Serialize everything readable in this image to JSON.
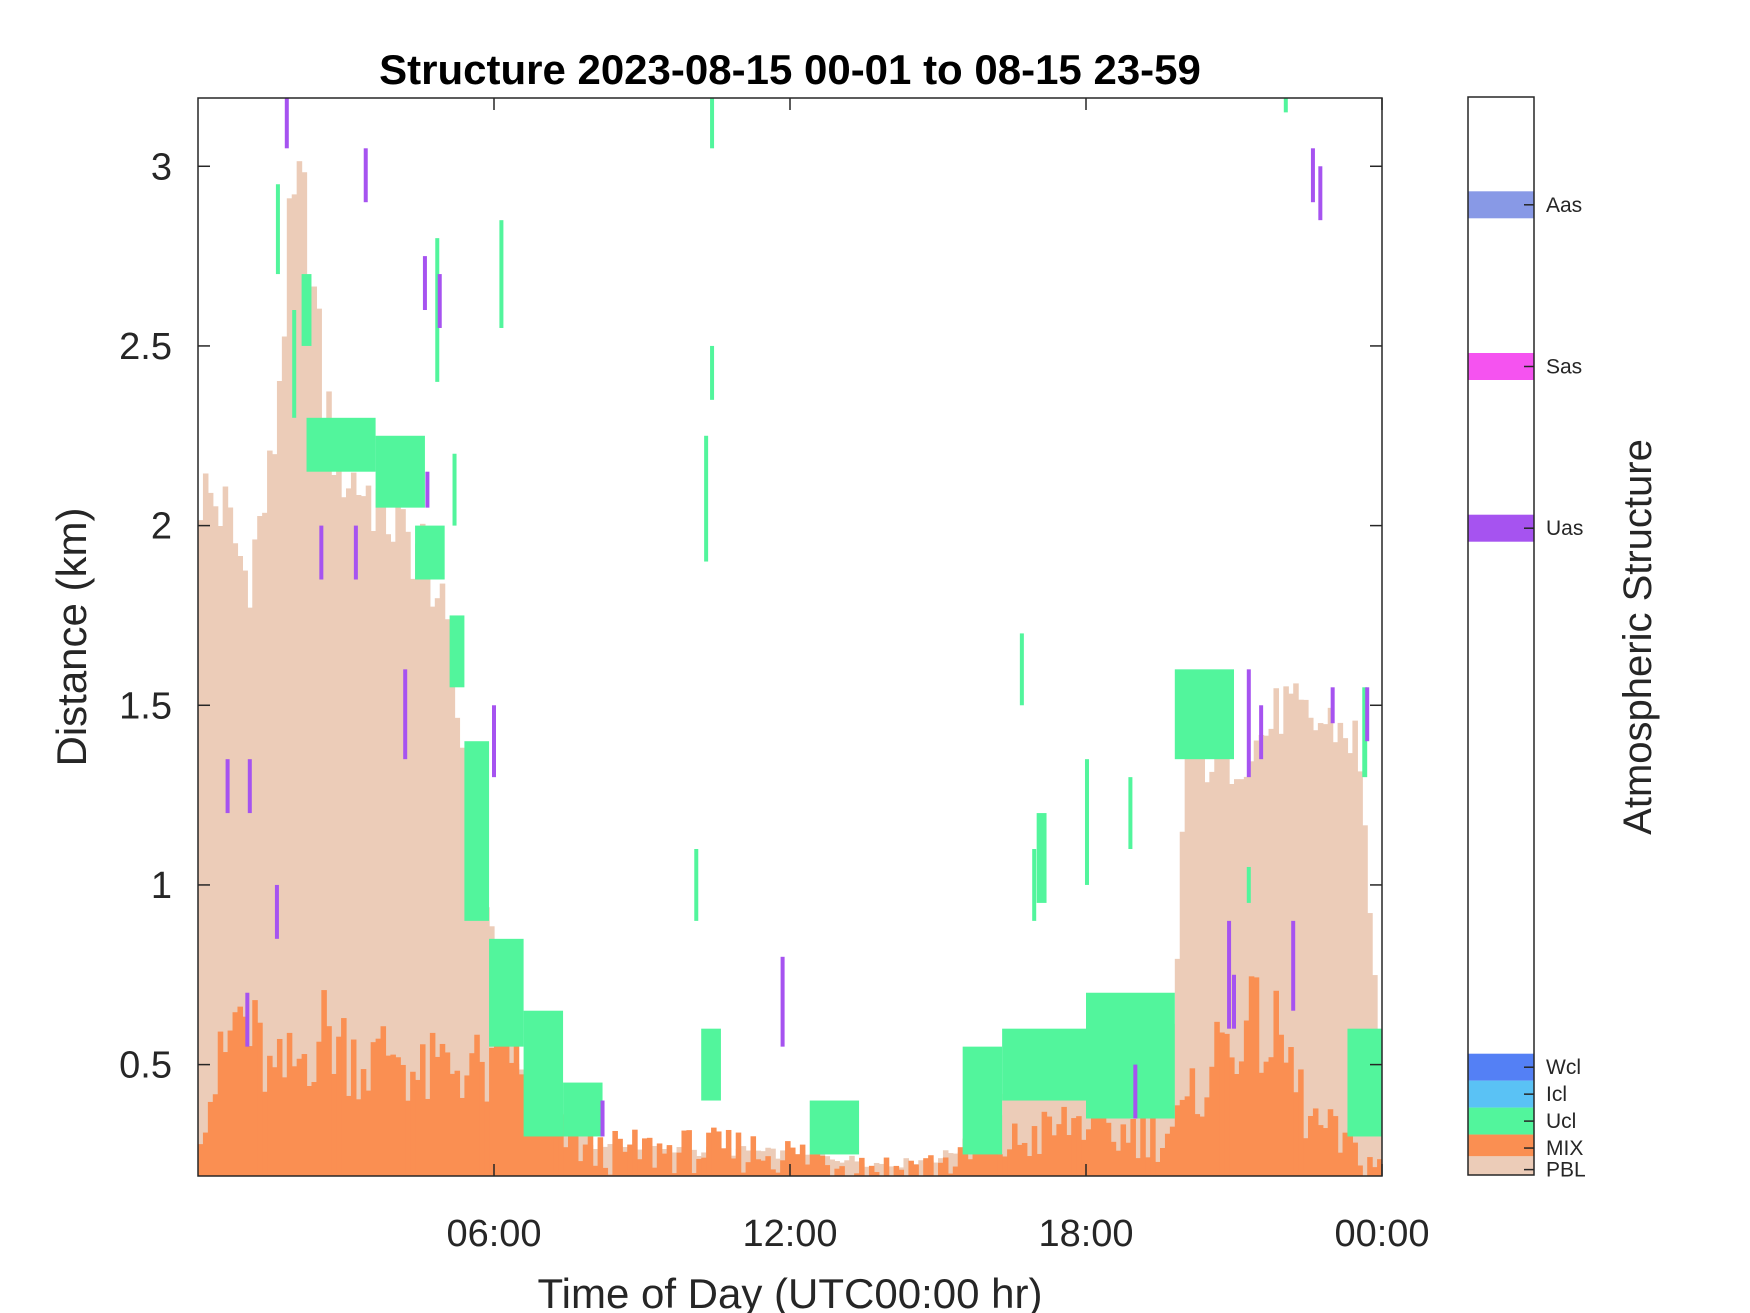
{
  "chart_data": {
    "type": "heatmap",
    "title": "Structure 2023-08-15 00-01 to 08-15 23-59",
    "xlabel": "Time of Day (UTC00:00 hr)",
    "ylabel": "Distance (km)",
    "xlim": [
      0,
      24
    ],
    "ylim": [
      0.19,
      3.19
    ],
    "xticks": [
      6,
      12,
      18,
      24
    ],
    "xtick_labels": [
      "06:00",
      "12:00",
      "18:00",
      "00:00"
    ],
    "yticks": [
      0.5,
      1,
      1.5,
      2,
      2.5,
      3
    ],
    "ytick_labels": [
      "0.5",
      "1",
      "1.5",
      "2",
      "2.5",
      "3"
    ],
    "grid": false,
    "colorbar": {
      "label": "Atmospheric Structure",
      "categories": [
        {
          "name": "Aas",
          "color": "#8899e6",
          "value": 0.1
        },
        {
          "name": "Sas",
          "color": "#f553f0",
          "value": 0.25
        },
        {
          "name": "Uas",
          "color": "#a653f0",
          "value": 0.4
        },
        {
          "name": "Wcl",
          "color": "#5480f5",
          "value": 0.9
        },
        {
          "name": "Icl",
          "color": "#5ac2f5",
          "value": 0.925
        },
        {
          "name": "Ucl",
          "color": "#52f59c",
          "value": 0.95
        },
        {
          "name": "MIX",
          "color": "#fa8f52",
          "value": 0.975
        },
        {
          "name": "PBL",
          "color": "#ecccb8",
          "value": 0.995
        }
      ]
    },
    "pbl_top_km": [
      [
        0.0,
        2.1
      ],
      [
        0.5,
        2.05
      ],
      [
        1.0,
        1.85
      ],
      [
        1.5,
        2.15
      ],
      [
        1.8,
        2.7
      ],
      [
        2.0,
        2.9
      ],
      [
        2.2,
        2.85
      ],
      [
        2.5,
        2.4
      ],
      [
        2.8,
        2.2
      ],
      [
        3.0,
        2.15
      ],
      [
        3.4,
        2.1
      ],
      [
        3.8,
        2.05
      ],
      [
        4.2,
        1.95
      ],
      [
        4.5,
        1.95
      ],
      [
        4.8,
        1.85
      ],
      [
        5.0,
        1.7
      ],
      [
        5.3,
        1.45
      ],
      [
        5.6,
        1.05
      ],
      [
        6.0,
        0.85
      ],
      [
        6.3,
        0.6
      ],
      [
        6.6,
        0.45
      ],
      [
        7.0,
        0.35
      ],
      [
        7.5,
        0.32
      ],
      [
        8.0,
        0.28
      ],
      [
        9.0,
        0.26
      ],
      [
        10.0,
        0.26
      ],
      [
        11.0,
        0.26
      ],
      [
        12.0,
        0.25
      ],
      [
        13.0,
        0.24
      ],
      [
        14.0,
        0.22
      ],
      [
        15.0,
        0.24
      ],
      [
        16.0,
        0.3
      ],
      [
        16.5,
        0.45
      ],
      [
        17.0,
        0.5
      ],
      [
        17.5,
        0.45
      ],
      [
        18.0,
        0.5
      ],
      [
        18.5,
        0.45
      ],
      [
        19.0,
        0.5
      ],
      [
        19.5,
        0.55
      ],
      [
        19.8,
        0.6
      ],
      [
        20.0,
        1.35
      ],
      [
        20.5,
        1.35
      ],
      [
        21.0,
        1.35
      ],
      [
        21.5,
        1.4
      ],
      [
        22.0,
        1.5
      ],
      [
        22.5,
        1.45
      ],
      [
        23.0,
        1.45
      ],
      [
        23.5,
        1.4
      ],
      [
        24.0,
        0.5
      ]
    ],
    "mix_top_km": [
      [
        0.0,
        0.35
      ],
      [
        0.5,
        0.5
      ],
      [
        0.8,
        0.65
      ],
      [
        1.2,
        0.55
      ],
      [
        1.5,
        0.45
      ],
      [
        2.0,
        0.5
      ],
      [
        2.5,
        0.6
      ],
      [
        3.0,
        0.55
      ],
      [
        3.5,
        0.5
      ],
      [
        4.0,
        0.55
      ],
      [
        4.5,
        0.45
      ],
      [
        5.0,
        0.5
      ],
      [
        5.5,
        0.5
      ],
      [
        6.0,
        0.45
      ],
      [
        6.3,
        0.6
      ],
      [
        6.6,
        0.4
      ],
      [
        7.0,
        0.3
      ],
      [
        7.5,
        0.3
      ],
      [
        8.0,
        0.25
      ],
      [
        9.0,
        0.26
      ],
      [
        10.0,
        0.26
      ],
      [
        11.0,
        0.26
      ],
      [
        12.0,
        0.25
      ],
      [
        13.0,
        0.23
      ],
      [
        14.0,
        0.21
      ],
      [
        15.0,
        0.22
      ],
      [
        16.0,
        0.26
      ],
      [
        17.0,
        0.3
      ],
      [
        18.0,
        0.35
      ],
      [
        18.5,
        0.3
      ],
      [
        19.0,
        0.32
      ],
      [
        19.5,
        0.3
      ],
      [
        20.0,
        0.35
      ],
      [
        20.5,
        0.5
      ],
      [
        21.0,
        0.6
      ],
      [
        21.5,
        0.6
      ],
      [
        22.0,
        0.55
      ],
      [
        22.5,
        0.35
      ],
      [
        23.0,
        0.3
      ],
      [
        23.5,
        0.25
      ],
      [
        24.0,
        0.22
      ]
    ],
    "ucl_blocks": [
      [
        2.1,
        2.3,
        2.5,
        2.7
      ],
      [
        2.2,
        3.6,
        2.15,
        2.3
      ],
      [
        3.6,
        4.6,
        2.05,
        2.25
      ],
      [
        4.4,
        5.0,
        1.85,
        2.0
      ],
      [
        5.1,
        5.4,
        1.55,
        1.75
      ],
      [
        5.4,
        5.9,
        0.9,
        1.4
      ],
      [
        5.9,
        6.6,
        0.55,
        0.85
      ],
      [
        6.6,
        7.4,
        0.3,
        0.65
      ],
      [
        7.4,
        8.2,
        0.3,
        0.45
      ],
      [
        10.2,
        10.6,
        0.4,
        0.6
      ],
      [
        12.4,
        13.4,
        0.25,
        0.4
      ],
      [
        15.5,
        16.3,
        0.25,
        0.55
      ],
      [
        16.3,
        18.0,
        0.4,
        0.6
      ],
      [
        17.0,
        17.2,
        0.95,
        1.2
      ],
      [
        18.0,
        19.8,
        0.35,
        0.7
      ],
      [
        19.8,
        21.0,
        1.35,
        1.6
      ],
      [
        23.3,
        24.0,
        0.3,
        0.6
      ],
      [
        23.6,
        23.7,
        1.3,
        1.55
      ]
    ],
    "ucl_streaks": [
      [
        1.62,
        2.7,
        2.95
      ],
      [
        1.95,
        2.3,
        2.6
      ],
      [
        6.15,
        2.55,
        2.85
      ],
      [
        10.3,
        1.9,
        2.25
      ],
      [
        10.42,
        2.35,
        2.5
      ],
      [
        10.42,
        3.05,
        3.2
      ],
      [
        10.1,
        0.9,
        1.1
      ],
      [
        16.7,
        1.5,
        1.7
      ],
      [
        16.95,
        0.9,
        1.1
      ],
      [
        18.02,
        1.0,
        1.35
      ],
      [
        18.9,
        1.1,
        1.3
      ],
      [
        21.3,
        0.95,
        1.05
      ],
      [
        22.05,
        3.15,
        3.2
      ],
      [
        4.85,
        2.4,
        2.8
      ],
      [
        5.2,
        2.0,
        2.2
      ]
    ],
    "uas_streaks": [
      [
        1.8,
        3.05,
        3.19
      ],
      [
        3.4,
        2.9,
        3.05
      ],
      [
        4.6,
        2.6,
        2.75
      ],
      [
        4.9,
        2.55,
        2.7
      ],
      [
        4.65,
        2.05,
        2.15
      ],
      [
        2.5,
        1.85,
        2.0
      ],
      [
        3.2,
        1.85,
        2.0
      ],
      [
        0.6,
        1.2,
        1.35
      ],
      [
        1.05,
        1.2,
        1.35
      ],
      [
        1.6,
        0.85,
        1.0
      ],
      [
        4.2,
        1.35,
        1.6
      ],
      [
        6.0,
        1.3,
        1.5
      ],
      [
        11.85,
        0.55,
        0.8
      ],
      [
        21.3,
        1.3,
        1.6
      ],
      [
        21.55,
        1.35,
        1.5
      ],
      [
        20.9,
        0.6,
        0.9
      ],
      [
        21.0,
        0.6,
        0.75
      ],
      [
        22.2,
        0.65,
        0.9
      ],
      [
        22.6,
        2.9,
        3.05
      ],
      [
        22.75,
        2.85,
        3.0
      ],
      [
        23.0,
        1.45,
        1.55
      ],
      [
        23.7,
        1.4,
        1.55
      ],
      [
        8.2,
        0.3,
        0.4
      ],
      [
        19.0,
        0.35,
        0.5
      ],
      [
        1.0,
        0.55,
        0.7
      ]
    ]
  }
}
